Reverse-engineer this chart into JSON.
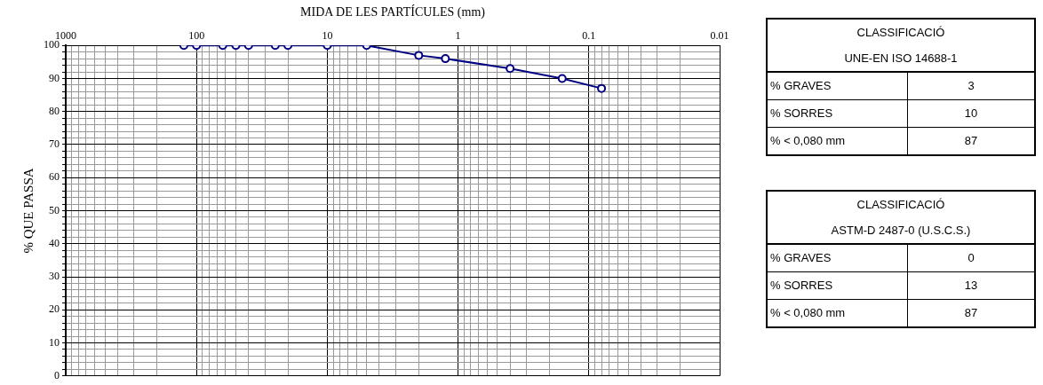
{
  "chart_data": [
    {
      "type": "line",
      "xlabel": "MIDA DE LES PARTÍCULES (mm)",
      "ylabel": "% QUE PASSA",
      "log": "x",
      "x": [
        125,
        100,
        63,
        50,
        40,
        25,
        20,
        10,
        5,
        2,
        1.25,
        0.4,
        0.16,
        0.08
      ],
      "series": [
        {
          "color": "#000080",
          "values": [
            100,
            100,
            100,
            100,
            100,
            100,
            100,
            100,
            100,
            97,
            96,
            93,
            90,
            87
          ]
        }
      ],
      "marker": "circle",
      "line_style": "solid",
      "grid": true,
      "legend": false,
      "xlim": [
        1000,
        0.01
      ],
      "xticks": [
        1000,
        {
          "value": 900,
          "label": null
        },
        {
          "value": 800,
          "label": null
        },
        {
          "value": 700,
          "label": null
        },
        {
          "value": 600,
          "label": null
        },
        {
          "value": 500,
          "label": null
        },
        {
          "value": 400,
          "label": null
        },
        {
          "value": 300,
          "label": null
        },
        {
          "value": 200,
          "label": null
        },
        100,
        {
          "value": 90,
          "label": null
        },
        {
          "value": 80,
          "label": null
        },
        {
          "value": 70,
          "label": null
        },
        {
          "value": 60,
          "label": null
        },
        {
          "value": 50,
          "label": null
        },
        {
          "value": 40,
          "label": null
        },
        {
          "value": 30,
          "label": null
        },
        {
          "value": 20,
          "label": null
        },
        10,
        {
          "value": 9,
          "label": null
        },
        {
          "value": 8,
          "label": null
        },
        {
          "value": 7,
          "label": null
        },
        {
          "value": 6,
          "label": null
        },
        {
          "value": 5,
          "label": null
        },
        {
          "value": 4,
          "label": null
        },
        {
          "value": 3,
          "label": null
        },
        {
          "value": 2,
          "label": null
        },
        1,
        {
          "value": 0.9,
          "label": null
        },
        {
          "value": 0.8,
          "label": null
        },
        {
          "value": 0.7,
          "label": null
        },
        {
          "value": 0.6,
          "label": null
        },
        {
          "value": 0.5,
          "label": null
        },
        {
          "value": 0.4,
          "label": null
        },
        {
          "value": 0.3,
          "label": null
        },
        {
          "value": 0.2,
          "label": null
        },
        0.1,
        {
          "value": 0.09,
          "label": null
        },
        {
          "value": 0.08,
          "label": null
        },
        {
          "value": 0.07,
          "label": null
        },
        {
          "value": 0.06,
          "label": null
        },
        {
          "value": 0.05,
          "label": null
        },
        {
          "value": 0.04,
          "label": null
        },
        {
          "value": 0.03,
          "label": null
        },
        {
          "value": 0.02,
          "label": null
        },
        0.01
      ],
      "ylim": [
        0,
        100
      ],
      "yticks": [
        0,
        {
          "value": 2,
          "label": null
        },
        {
          "value": 4,
          "label": null
        },
        {
          "value": 6,
          "label": null
        },
        {
          "value": 8,
          "label": null
        },
        10,
        {
          "value": 12,
          "label": null
        },
        {
          "value": 14,
          "label": null
        },
        {
          "value": 16,
          "label": null
        },
        {
          "value": 18,
          "label": null
        },
        20,
        {
          "value": 22,
          "label": null
        },
        {
          "value": 24,
          "label": null
        },
        {
          "value": 26,
          "label": null
        },
        {
          "value": 28,
          "label": null
        },
        30,
        {
          "value": 32,
          "label": null
        },
        {
          "value": 34,
          "label": null
        },
        {
          "value": 36,
          "label": null
        },
        {
          "value": 38,
          "label": null
        },
        40,
        {
          "value": 42,
          "label": null
        },
        {
          "value": 44,
          "label": null
        },
        {
          "value": 46,
          "label": null
        },
        {
          "value": 48,
          "label": null
        },
        50,
        {
          "value": 52,
          "label": null
        },
        {
          "value": 54,
          "label": null
        },
        {
          "value": 56,
          "label": null
        },
        {
          "value": 58,
          "label": null
        },
        60,
        {
          "value": 62,
          "label": null
        },
        {
          "value": 64,
          "label": null
        },
        {
          "value": 66,
          "label": null
        },
        {
          "value": 68,
          "label": null
        },
        70,
        {
          "value": 72,
          "label": null
        },
        {
          "value": 74,
          "label": null
        },
        {
          "value": 76,
          "label": null
        },
        {
          "value": 78,
          "label": null
        },
        80,
        {
          "value": 82,
          "label": null
        },
        {
          "value": 84,
          "label": null
        },
        {
          "value": 86,
          "label": null
        },
        {
          "value": 88,
          "label": null
        },
        90,
        {
          "value": 92,
          "label": null
        },
        {
          "value": 94,
          "label": null
        },
        {
          "value": 96,
          "label": null
        },
        {
          "value": 98,
          "label": null
        },
        100
      ]
    },
    {
      "type": "other",
      "title": "CLASSIFICACIÓ",
      "subtitle": "UNE-EN ISO 14688-1",
      "categories": [
        "% GRAVES",
        "% SORRES",
        "% < 0,080 mm"
      ],
      "values": [
        3,
        10,
        87
      ],
      "data_labels": true
    },
    {
      "type": "other",
      "title": "CLASSIFICACIÓ",
      "subtitle": "ASTM-D 2487-0 (U.S.C.S.)",
      "categories": [
        "% GRAVES",
        "% SORRES",
        "% < 0,080 mm"
      ],
      "values": [
        0,
        13,
        87
      ],
      "data_labels": true
    }
  ]
}
